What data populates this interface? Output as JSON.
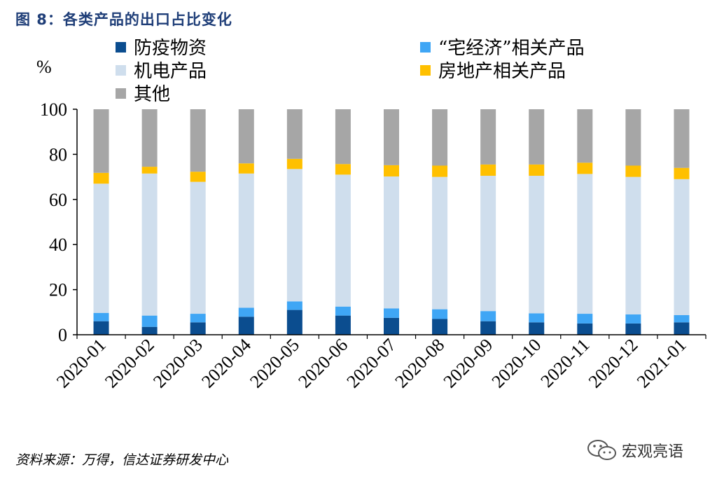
{
  "figure": {
    "title": "图 8：各类产品的出口占比变化",
    "source": "资料来源：万得，信达证券研发中心",
    "watermark": "宏观亮语"
  },
  "chart_data": {
    "type": "bar",
    "stacked": true,
    "title": "图 8：各类产品的出口占比变化",
    "ylabel": "%",
    "xlabel": "",
    "ylim": [
      0,
      100
    ],
    "yticks": [
      0,
      20,
      40,
      60,
      80,
      100
    ],
    "grid": false,
    "legend_position": "top",
    "categories": [
      "2020-01",
      "2020-02",
      "2020-03",
      "2020-04",
      "2020-05",
      "2020-06",
      "2020-07",
      "2020-08",
      "2020-09",
      "2020-10",
      "2020-11",
      "2020-12",
      "2021-01"
    ],
    "series": [
      {
        "name": "防疫物资",
        "color": "#0b4d8f",
        "values": [
          6.0,
          3.5,
          5.5,
          8.0,
          11.0,
          8.5,
          7.5,
          7.0,
          6.0,
          5.5,
          5.0,
          5.0,
          5.5
        ]
      },
      {
        "name": "“宅经济”相关产品",
        "color": "#3fa6f5",
        "values": [
          3.7,
          5.0,
          3.8,
          4.0,
          3.8,
          4.0,
          4.2,
          4.3,
          4.5,
          4.0,
          4.3,
          4.0,
          3.2
        ]
      },
      {
        "name": "机电产品",
        "color": "#cfdeed",
        "values": [
          57.3,
          63.0,
          58.5,
          59.5,
          58.7,
          58.5,
          58.5,
          58.7,
          60.0,
          61.0,
          62.0,
          61.0,
          60.3
        ]
      },
      {
        "name": "房地产相关产品",
        "color": "#ffc000",
        "values": [
          4.8,
          3.0,
          4.5,
          4.5,
          4.5,
          4.7,
          5.0,
          5.0,
          5.0,
          5.0,
          5.0,
          5.0,
          5.0
        ]
      },
      {
        "name": "其他",
        "color": "#a6a6a6",
        "values": [
          28.2,
          25.5,
          27.7,
          24.0,
          22.0,
          24.3,
          24.8,
          25.0,
          24.5,
          24.5,
          23.7,
          25.0,
          26.0
        ]
      }
    ]
  }
}
